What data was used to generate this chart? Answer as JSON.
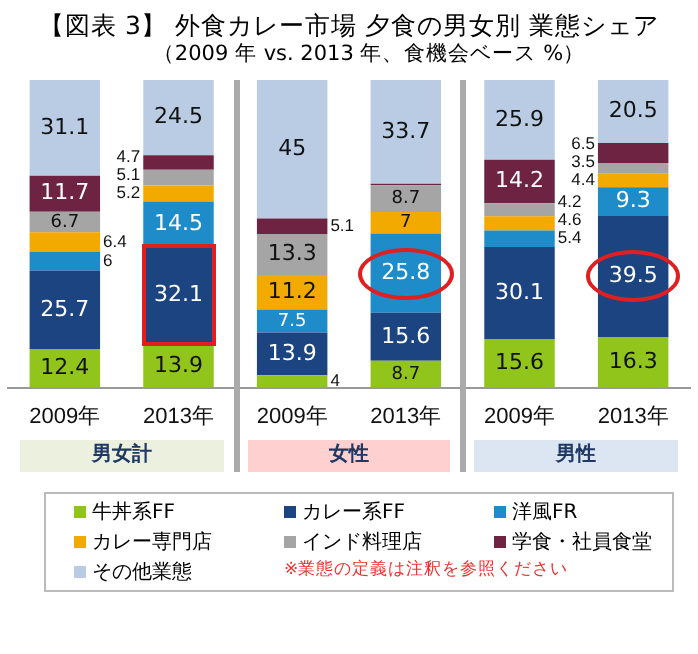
{
  "chart_data": {
    "type": "bar",
    "stacked": true,
    "title": "【図表 3】 外食カレー市場  夕食の男女別  業態シェア",
    "subtitle": "（2009 年 vs. 2013 年、食機会ベース %）",
    "categories": [
      "2009年",
      "2013年",
      "2009年",
      "2013年",
      "2009年",
      "2013年"
    ],
    "series": [
      {
        "name": "牛丼系FF",
        "color": "#92c51b",
        "values": [
          12.4,
          13.9,
          4,
          8.7,
          15.6,
          16.3
        ],
        "value_labels": [
          "12.4",
          "13.9",
          "4",
          "8.7",
          "15.6",
          "16.3"
        ]
      },
      {
        "name": "カレー系FF",
        "color": "#1b4480",
        "values": [
          25.7,
          32.1,
          13.9,
          15.6,
          30.1,
          39.5
        ],
        "value_labels": [
          "25.7",
          "32.1",
          "13.9",
          "15.6",
          "30.1",
          "39.5"
        ]
      },
      {
        "name": "洋風FR",
        "color": "#1e8cc8",
        "values": [
          6,
          14.5,
          7.5,
          25.8,
          5.4,
          9.3
        ],
        "value_labels": [
          "6",
          "14.5",
          "7.5",
          "25.8",
          "5.4",
          "9.3"
        ]
      },
      {
        "name": "カレー専門店",
        "color": "#f2a900",
        "values": [
          6.4,
          5.2,
          11.2,
          7,
          4.6,
          4.4
        ],
        "value_labels": [
          "6.4",
          "5.2",
          "11.2",
          "7",
          "4.6",
          "4.4"
        ]
      },
      {
        "name": "インド料理店",
        "color": "#a5a5a5",
        "values": [
          6.7,
          5.1,
          13.3,
          8.7,
          4.2,
          3.5
        ],
        "value_labels": [
          "6.7",
          "5.1",
          "13.3",
          "8.7",
          "4.2",
          "3.5"
        ]
      },
      {
        "name": "学食・社員食堂",
        "color": "#6d2341",
        "values": [
          11.7,
          4.7,
          5.1,
          0.5,
          14.2,
          6.5
        ],
        "value_labels": [
          "11.7",
          "4.7",
          "5.1",
          null,
          "14.2",
          "6.5"
        ]
      },
      {
        "name": "その他業態",
        "color": "#b9cce4",
        "values": [
          31.1,
          24.5,
          45,
          33.7,
          25.9,
          20.5
        ],
        "value_labels": [
          "31.1",
          "24.5",
          "45",
          "33.7",
          "25.9",
          "20.5"
        ]
      }
    ],
    "ylim": [
      0,
      100
    ],
    "tick_labels": "x",
    "grid": false,
    "legend": "bottom",
    "annotations": [
      "男女計",
      "女性",
      "男性",
      "※業態の定義は注釈を参照ください"
    ]
  }
}
